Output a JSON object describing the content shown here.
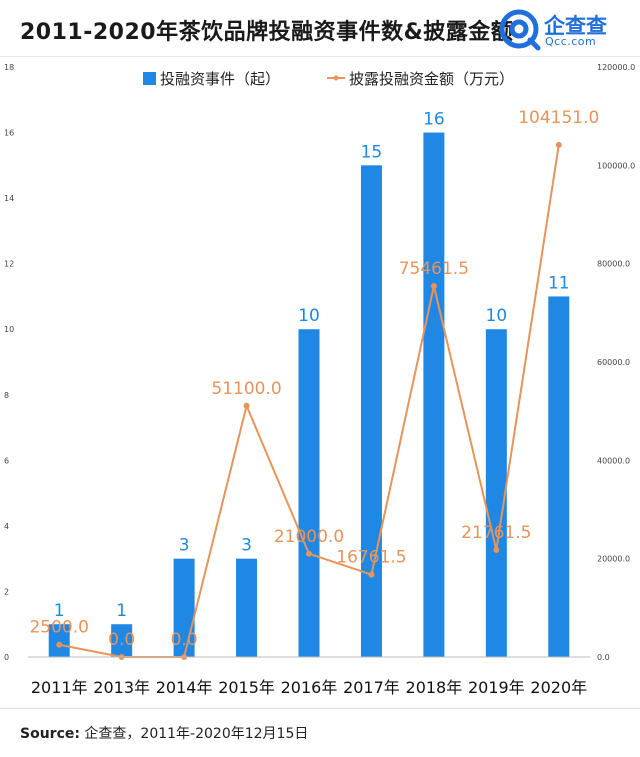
{
  "header": {
    "title": "2011-2020年茶饮品牌投融资事件数&披露金额",
    "logo_cn": "企查查",
    "logo_en": "Qcc.com"
  },
  "footer": {
    "source_label": "Source:",
    "source_text": "企查查，2011年-2020年12月15日"
  },
  "colors": {
    "bar": "#1f88e5",
    "line": "#e8935a",
    "bar_label": "#1f88e5",
    "line_label": "#e8935a",
    "brand": "#1f6fdc"
  },
  "chart_data": {
    "type": "bar",
    "categories": [
      "2011年",
      "2013年",
      "2014年",
      "2015年",
      "2016年",
      "2017年",
      "2018年",
      "2019年",
      "2020年"
    ],
    "series": [
      {
        "name": "投融资事件（起）",
        "type": "bar",
        "axis": "left",
        "values": [
          1,
          1,
          3,
          3,
          10,
          15,
          16,
          10,
          11
        ],
        "labels": [
          "1",
          "1",
          "3",
          "3",
          "10",
          "15",
          "16",
          "10",
          "11"
        ]
      },
      {
        "name": "披露投融资金额（万元）",
        "type": "line",
        "axis": "right",
        "values": [
          2500.0,
          0.0,
          0.0,
          51100.0,
          21000.0,
          16761.5,
          75461.5,
          21761.5,
          104151.0
        ],
        "labels": [
          "2500.0",
          "0.0",
          "0.0",
          "51100.0",
          "21000.0",
          "16761.5",
          "75461.5",
          "21761.5",
          "104151.0"
        ]
      }
    ],
    "y_left": {
      "ylim": [
        0,
        18
      ],
      "ticks": [
        "0",
        "2",
        "4",
        "6",
        "8",
        "10",
        "12",
        "14",
        "16",
        "18"
      ]
    },
    "y_right": {
      "ylim": [
        0,
        120000
      ],
      "ticks": [
        "0.0",
        "20000.0",
        "40000.0",
        "60000.0",
        "80000.0",
        "100000.0",
        "120000.0"
      ]
    },
    "legend_position": "top-center",
    "grid": false
  }
}
